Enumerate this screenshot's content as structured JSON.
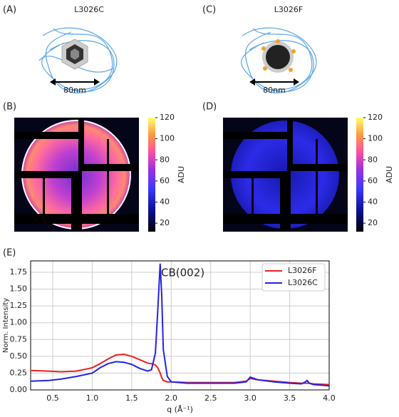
{
  "schematics": [
    {
      "panel": "(A)",
      "title": "L3026C",
      "scale": "80nm"
    },
    {
      "panel": "(C)",
      "title": "L3026F",
      "scale": "80nm"
    }
  ],
  "chart_data": [
    {
      "type": "heatmap",
      "panel": "(B)",
      "clim": [
        12,
        120
      ],
      "colorbar_ticks": [
        20,
        40,
        60,
        80,
        100,
        120
      ],
      "colorbar_label": "ADU"
    },
    {
      "type": "heatmap",
      "panel": "(D)",
      "clim": [
        12,
        120
      ],
      "colorbar_ticks": [
        20,
        40,
        60,
        80,
        100,
        120
      ],
      "colorbar_label": "ADU"
    },
    {
      "type": "line",
      "panel": "(E)",
      "annotation": "CB(002)",
      "x_label": "q  (Å⁻¹)",
      "y_label": "Norm. Intensity",
      "x": [
        0.22,
        0.45,
        0.6,
        0.8,
        1.0,
        1.1,
        1.2,
        1.3,
        1.4,
        1.5,
        1.6,
        1.7,
        1.75,
        1.8,
        1.83,
        1.86,
        1.88,
        1.9,
        1.95,
        2.0,
        2.2,
        2.5,
        2.8,
        2.95,
        3.0,
        3.05,
        3.1,
        3.3,
        3.5,
        3.65,
        3.7,
        3.72,
        3.75,
        3.8,
        4.0
      ],
      "series": [
        {
          "name": "L3026F",
          "color": "#e8221f",
          "values": [
            0.29,
            0.28,
            0.27,
            0.28,
            0.33,
            0.39,
            0.46,
            0.52,
            0.53,
            0.5,
            0.45,
            0.4,
            0.39,
            0.37,
            0.33,
            0.25,
            0.18,
            0.14,
            0.12,
            0.12,
            0.11,
            0.11,
            0.11,
            0.13,
            0.17,
            0.16,
            0.15,
            0.13,
            0.11,
            0.1,
            0.1,
            0.1,
            0.1,
            0.09,
            0.08
          ]
        },
        {
          "name": "L3026C",
          "color": "#2323e8",
          "values": [
            0.13,
            0.14,
            0.16,
            0.2,
            0.25,
            0.33,
            0.39,
            0.42,
            0.41,
            0.38,
            0.32,
            0.28,
            0.3,
            0.55,
            1.2,
            1.88,
            1.4,
            0.6,
            0.2,
            0.12,
            0.1,
            0.1,
            0.1,
            0.12,
            0.19,
            0.17,
            0.15,
            0.12,
            0.1,
            0.09,
            0.12,
            0.14,
            0.1,
            0.08,
            0.06
          ]
        }
      ],
      "xlim": [
        0.22,
        4.0
      ],
      "ylim": [
        0,
        1.92
      ],
      "xticks": [
        {
          "value": 0.5,
          "label": "0.5"
        },
        {
          "value": 1,
          "label": "1.0"
        },
        {
          "value": 1.5,
          "label": "1.5"
        },
        {
          "value": 2,
          "label": "2.0"
        },
        {
          "value": 2.5,
          "label": "2.5"
        },
        {
          "value": 3,
          "label": "3.0"
        },
        {
          "value": 3.5,
          "label": "3.5"
        },
        {
          "value": 4,
          "label": "4.0"
        }
      ],
      "yticks": [
        {
          "value": 0,
          "label": "0.00"
        },
        {
          "value": 0.25,
          "label": "0.25"
        },
        {
          "value": 0.5,
          "label": "0.50"
        },
        {
          "value": 0.75,
          "label": "0.75"
        },
        {
          "value": 1,
          "label": "1.00"
        },
        {
          "value": 1.25,
          "label": "1.25"
        },
        {
          "value": 1.5,
          "label": "1.50"
        },
        {
          "value": 1.75,
          "label": "1.75"
        }
      ],
      "grid": true,
      "legend": "upper right"
    }
  ]
}
